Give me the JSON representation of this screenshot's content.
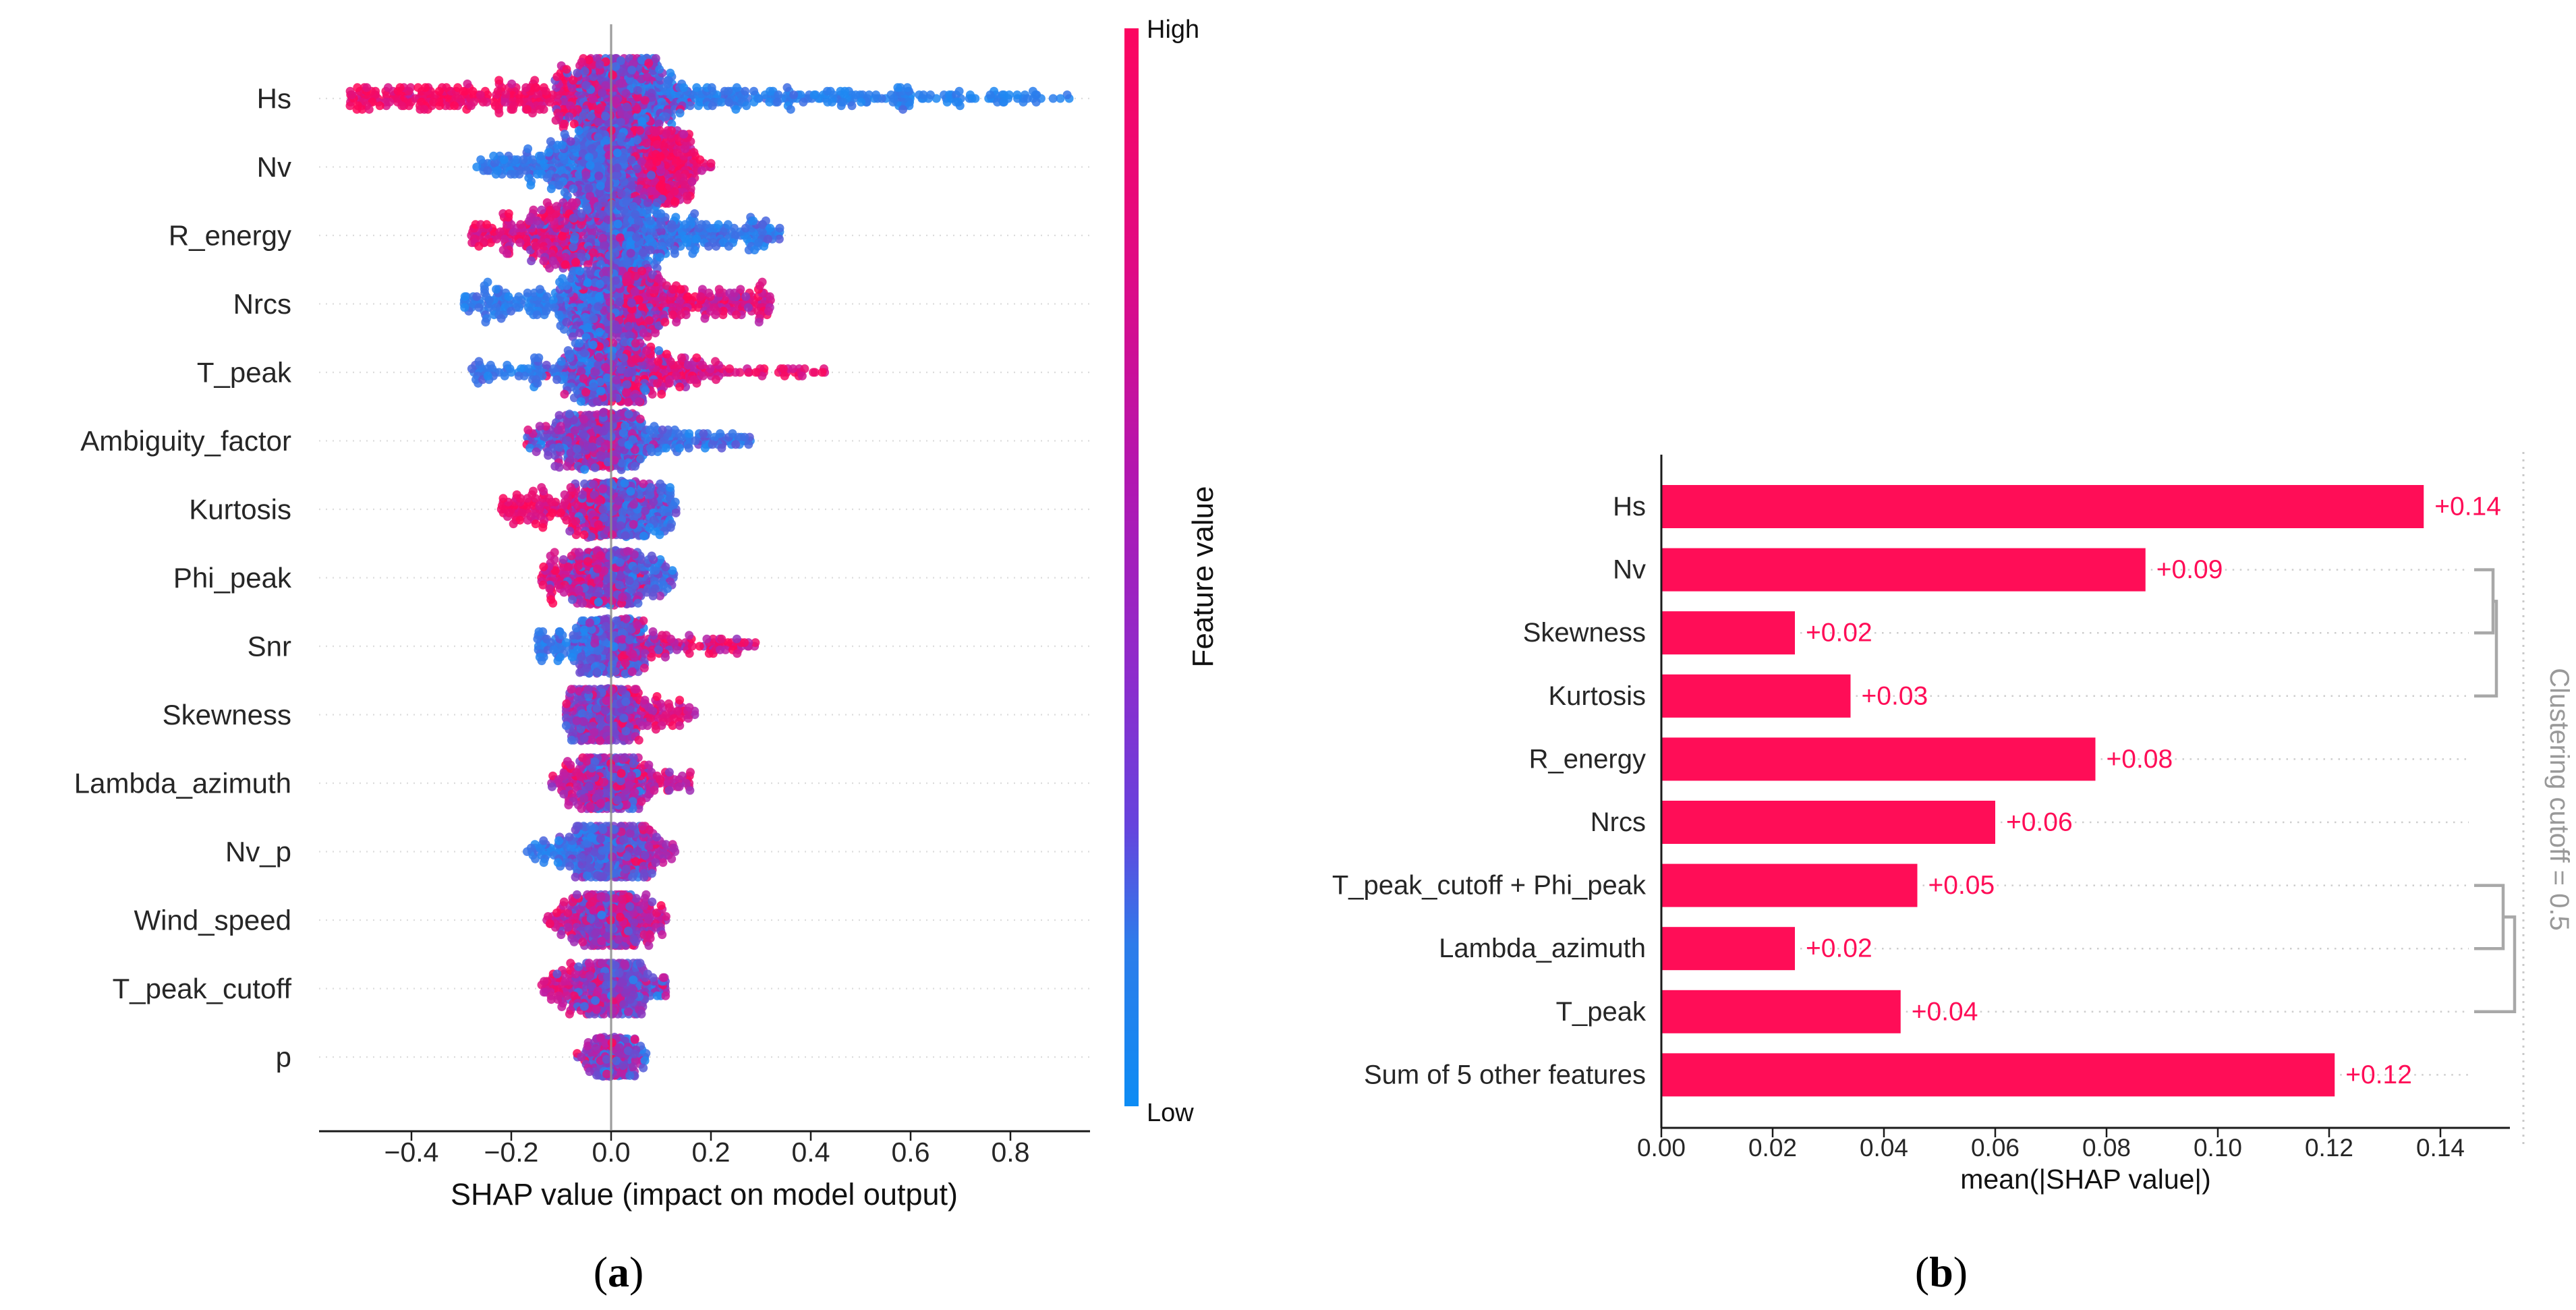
{
  "figure": {
    "background": "#ffffff",
    "caption_a": {
      "open": "(",
      "letter": "a",
      "close": ")"
    },
    "caption_b": {
      "open": "(",
      "letter": "b",
      "close": ")"
    }
  },
  "colors": {
    "accent_red": "#ff0d57",
    "accent_blue": "#1e88e5",
    "bar_fill": "#ff0d57",
    "value_label": "#ff0d57",
    "zero_line": "#8c8c8c",
    "row_dotted": "#dcdcdc",
    "leader_dotted": "#cdcdcd",
    "dendrogram": "#a8a8a8",
    "cutoff_line": "#c9c9c9",
    "axis": "#1a1a1a",
    "tick_text": "#262626",
    "label_text": "#262626",
    "muted_text": "#999999",
    "colormap": [
      {
        "t": 0.0,
        "c": "#1f88f2"
      },
      {
        "t": 0.5,
        "c": "#7d3cc6"
      },
      {
        "t": 0.75,
        "c": "#c41ba0"
      },
      {
        "t": 1.0,
        "c": "#ff0758"
      }
    ],
    "colorbar_gradient": [
      {
        "o": 0.0,
        "c": "#fc0560"
      },
      {
        "o": 0.22,
        "c": "#e00a84"
      },
      {
        "o": 0.42,
        "c": "#b117b1"
      },
      {
        "o": 0.6,
        "c": "#8d2ccc"
      },
      {
        "o": 0.74,
        "c": "#6643dd"
      },
      {
        "o": 0.85,
        "c": "#2e7cea"
      },
      {
        "o": 1.0,
        "c": "#0d8cf4"
      }
    ]
  },
  "chart_data": [
    {
      "id": "a",
      "type": "beeswarm",
      "xlabel": "SHAP value (impact on model output)",
      "xticks": [
        "−0.4",
        "−0.2",
        "0.0",
        "0.2",
        "0.4",
        "0.6",
        "0.8"
      ],
      "xtick_values": [
        -0.4,
        -0.2,
        0.0,
        0.2,
        0.4,
        0.6,
        0.8
      ],
      "xlim": [
        -0.585,
        0.96
      ],
      "grid": "dotted-rows",
      "colorbar": {
        "label": "Feature value",
        "high": "High",
        "low": "Low"
      },
      "features": [
        {
          "name": "Hs",
          "shap_range": [
            -0.53,
            0.92
          ],
          "trend": "high feature value -> negative SHAP",
          "n": 1100,
          "hw": 60,
          "comps": [
            {
              "f": 0.42,
              "k": "norm",
              "a": 0.015,
              "b": 0.055,
              "t": 0.5,
              "ts": 0.22
            },
            {
              "f": 0.3,
              "k": "tail",
              "a": -0.02,
              "b": -0.53,
              "e": 1.6,
              "t": 0.93,
              "ts": 0.07
            },
            {
              "f": 0.22,
              "k": "tail",
              "a": 0.06,
              "b": 0.6,
              "e": 1.7,
              "t": 0.07,
              "ts": 0.07
            },
            {
              "f": 0.06,
              "k": "tail",
              "a": 0.55,
              "b": 0.92,
              "e": 1.2,
              "t": 0.05,
              "ts": 0.05
            }
          ]
        },
        {
          "name": "Nv",
          "shap_range": [
            -0.27,
            0.2
          ],
          "trend": "high feature value -> positive SHAP",
          "n": 900,
          "hw": 54,
          "comps": [
            {
              "f": 0.38,
              "k": "norm",
              "a": -0.01,
              "b": 0.045,
              "t": 0.35,
              "ts": 0.2
            },
            {
              "f": 0.24,
              "k": "tail",
              "a": -0.02,
              "b": -0.27,
              "e": 1.6,
              "t": 0.1,
              "ts": 0.08
            },
            {
              "f": 0.33,
              "k": "norm",
              "a": 0.105,
              "b": 0.035,
              "t": 0.88,
              "ts": 0.1
            },
            {
              "f": 0.05,
              "k": "unif",
              "a": -0.04,
              "b": 0.06,
              "t": 0.5,
              "ts": 0.3
            }
          ]
        },
        {
          "name": "R_energy",
          "shap_range": [
            -0.28,
            0.34
          ],
          "trend": "high feature value -> negative SHAP",
          "n": 850,
          "hw": 52,
          "comps": [
            {
              "f": 0.33,
              "k": "norm",
              "a": 0.02,
              "b": 0.05,
              "t": 0.3,
              "ts": 0.18
            },
            {
              "f": 0.3,
              "k": "norm",
              "a": -0.11,
              "b": 0.055,
              "t": 0.8,
              "ts": 0.15
            },
            {
              "f": 0.32,
              "k": "tail",
              "a": 0.03,
              "b": 0.34,
              "e": 1.7,
              "t": 0.12,
              "ts": 0.1
            },
            {
              "f": 0.05,
              "k": "tail",
              "a": -0.2,
              "b": -0.28,
              "e": 1.2,
              "t": 0.9,
              "ts": 0.08
            }
          ]
        },
        {
          "name": "Nrcs",
          "shap_range": [
            -0.3,
            0.32
          ],
          "trend": "high feature value -> positive SHAP",
          "n": 800,
          "hw": 50,
          "comps": [
            {
              "f": 0.38,
              "k": "norm",
              "a": 0.0,
              "b": 0.05,
              "t": 0.45,
              "ts": 0.2
            },
            {
              "f": 0.27,
              "k": "tail",
              "a": -0.02,
              "b": -0.3,
              "e": 1.7,
              "t": 0.08,
              "ts": 0.07
            },
            {
              "f": 0.35,
              "k": "tail",
              "a": 0.03,
              "b": 0.32,
              "e": 1.8,
              "t": 0.85,
              "ts": 0.12
            }
          ]
        },
        {
          "name": "T_peak",
          "shap_range": [
            -0.28,
            0.43
          ],
          "trend": "high feature value -> positive SHAP, sparse high outliers right",
          "n": 650,
          "hw": 46,
          "comps": [
            {
              "f": 0.48,
              "k": "norm",
              "a": 0.0,
              "b": 0.045,
              "t": 0.5,
              "ts": 0.25
            },
            {
              "f": 0.24,
              "k": "tail",
              "a": -0.02,
              "b": -0.28,
              "e": 1.7,
              "t": 0.12,
              "ts": 0.1
            },
            {
              "f": 0.22,
              "k": "tail",
              "a": 0.03,
              "b": 0.22,
              "e": 1.5,
              "t": 0.85,
              "ts": 0.12
            },
            {
              "f": 0.06,
              "k": "unif",
              "a": 0.2,
              "b": 0.43,
              "t": 0.9,
              "ts": 0.08
            }
          ]
        },
        {
          "name": "Ambiguity_factor",
          "shap_range": [
            -0.17,
            0.28
          ],
          "trend": "low feature value -> positive tail",
          "n": 560,
          "hw": 43,
          "comps": [
            {
              "f": 0.62,
              "k": "norm",
              "a": -0.025,
              "b": 0.045,
              "t": 0.55,
              "ts": 0.25
            },
            {
              "f": 0.28,
              "k": "tail",
              "a": 0.02,
              "b": 0.28,
              "e": 1.7,
              "t": 0.15,
              "ts": 0.12
            },
            {
              "f": 0.1,
              "k": "tail",
              "a": -0.08,
              "b": -0.17,
              "e": 1.3,
              "t": 0.45,
              "ts": 0.25
            }
          ]
        },
        {
          "name": "Kurtosis",
          "shap_range": [
            -0.22,
            0.13
          ],
          "trend": "high feature value -> negative SHAP",
          "n": 560,
          "hw": 42,
          "comps": [
            {
              "f": 0.5,
              "k": "norm",
              "a": 0.01,
              "b": 0.04,
              "t": 0.45,
              "ts": 0.22
            },
            {
              "f": 0.3,
              "k": "tail",
              "a": -0.02,
              "b": -0.22,
              "e": 1.5,
              "t": 0.9,
              "ts": 0.08
            },
            {
              "f": 0.2,
              "k": "tail",
              "a": 0.02,
              "b": 0.13,
              "e": 1.4,
              "t": 0.15,
              "ts": 0.12
            }
          ]
        },
        {
          "name": "Phi_peak",
          "shap_range": [
            -0.14,
            0.13
          ],
          "trend": "high feature value -> negative SHAP",
          "n": 500,
          "hw": 41,
          "comps": [
            {
              "f": 0.6,
              "k": "norm",
              "a": 0.0,
              "b": 0.038,
              "t": 0.5,
              "ts": 0.25
            },
            {
              "f": 0.25,
              "k": "tail",
              "a": -0.02,
              "b": -0.14,
              "e": 1.4,
              "t": 0.85,
              "ts": 0.1
            },
            {
              "f": 0.15,
              "k": "tail",
              "a": 0.03,
              "b": 0.13,
              "e": 1.4,
              "t": 0.2,
              "ts": 0.15
            }
          ]
        },
        {
          "name": "Snr",
          "shap_range": [
            -0.15,
            0.29
          ],
          "trend": "high feature value -> positive SHAP",
          "n": 500,
          "hw": 41,
          "comps": [
            {
              "f": 0.55,
              "k": "norm",
              "a": 0.0,
              "b": 0.04,
              "t": 0.38,
              "ts": 0.2
            },
            {
              "f": 0.2,
              "k": "tail",
              "a": -0.02,
              "b": -0.15,
              "e": 1.4,
              "t": 0.1,
              "ts": 0.08
            },
            {
              "f": 0.25,
              "k": "tail",
              "a": 0.02,
              "b": 0.29,
              "e": 1.9,
              "t": 0.85,
              "ts": 0.12
            }
          ]
        },
        {
          "name": "Skewness",
          "shap_range": [
            -0.09,
            0.17
          ],
          "trend": "high feature value -> positive SHAP",
          "n": 470,
          "hw": 39,
          "comps": [
            {
              "f": 0.68,
              "k": "norm",
              "a": -0.008,
              "b": 0.032,
              "t": 0.52,
              "ts": 0.22
            },
            {
              "f": 0.22,
              "k": "tail",
              "a": 0.02,
              "b": 0.17,
              "e": 1.5,
              "t": 0.82,
              "ts": 0.12
            },
            {
              "f": 0.1,
              "k": "tail",
              "a": -0.05,
              "b": -0.09,
              "e": 1.2,
              "t": 0.6,
              "ts": 0.2
            }
          ]
        },
        {
          "name": "Lambda_azimuth",
          "shap_range": [
            -0.12,
            0.16
          ],
          "trend": "mixed, red at both extremes",
          "n": 450,
          "hw": 38,
          "comps": [
            {
              "f": 0.6,
              "k": "norm",
              "a": 0.0,
              "b": 0.034,
              "t": 0.5,
              "ts": 0.25
            },
            {
              "f": 0.2,
              "k": "tail",
              "a": -0.02,
              "b": -0.12,
              "e": 1.4,
              "t": 0.78,
              "ts": 0.12
            },
            {
              "f": 0.2,
              "k": "tail",
              "a": 0.02,
              "b": 0.16,
              "e": 1.5,
              "t": 0.78,
              "ts": 0.12
            }
          ]
        },
        {
          "name": "Nv_p",
          "shap_range": [
            -0.17,
            0.13
          ],
          "trend": "high feature value -> positive SHAP",
          "n": 450,
          "hw": 38,
          "comps": [
            {
              "f": 0.6,
              "k": "norm",
              "a": 0.0,
              "b": 0.038,
              "t": 0.35,
              "ts": 0.18
            },
            {
              "f": 0.22,
              "k": "tail",
              "a": -0.02,
              "b": -0.17,
              "e": 1.5,
              "t": 0.1,
              "ts": 0.08
            },
            {
              "f": 0.18,
              "k": "tail",
              "a": 0.02,
              "b": 0.13,
              "e": 1.4,
              "t": 0.75,
              "ts": 0.15
            }
          ]
        },
        {
          "name": "Wind_speed",
          "shap_range": [
            -0.13,
            0.11
          ],
          "trend": "mixed purple core, red tails",
          "n": 450,
          "hw": 38,
          "comps": [
            {
              "f": 0.66,
              "k": "norm",
              "a": 0.0,
              "b": 0.038,
              "t": 0.6,
              "ts": 0.22
            },
            {
              "f": 0.17,
              "k": "tail",
              "a": -0.02,
              "b": -0.13,
              "e": 1.4,
              "t": 0.8,
              "ts": 0.12
            },
            {
              "f": 0.17,
              "k": "tail",
              "a": 0.02,
              "b": 0.11,
              "e": 1.3,
              "t": 0.75,
              "ts": 0.15
            }
          ]
        },
        {
          "name": "T_peak_cutoff",
          "shap_range": [
            -0.14,
            0.11
          ],
          "trend": "high feature value -> negative SHAP",
          "n": 450,
          "hw": 38,
          "comps": [
            {
              "f": 0.64,
              "k": "norm",
              "a": 0.0,
              "b": 0.038,
              "t": 0.5,
              "ts": 0.22
            },
            {
              "f": 0.21,
              "k": "tail",
              "a": -0.02,
              "b": -0.14,
              "e": 1.4,
              "t": 0.85,
              "ts": 0.1
            },
            {
              "f": 0.15,
              "k": "tail",
              "a": 0.02,
              "b": 0.11,
              "e": 1.3,
              "t": 0.45,
              "ts": 0.25
            }
          ]
        },
        {
          "name": "p",
          "shap_range": [
            -0.08,
            0.07
          ],
          "trend": "small mixed cluster",
          "n": 260,
          "hw": 30,
          "comps": [
            {
              "f": 0.85,
              "k": "norm",
              "a": -0.004,
              "b": 0.024,
              "t": 0.55,
              "ts": 0.25
            },
            {
              "f": 0.15,
              "k": "tail",
              "a": 0.01,
              "b": 0.07,
              "e": 1.3,
              "t": 0.3,
              "ts": 0.25
            }
          ]
        }
      ]
    },
    {
      "id": "b",
      "type": "bar",
      "orientation": "horizontal",
      "xlabel": "mean(|SHAP value|)",
      "xticks": [
        "0.00",
        "0.02",
        "0.04",
        "0.06",
        "0.08",
        "0.10",
        "0.12",
        "0.14"
      ],
      "xtick_values": [
        0.0,
        0.02,
        0.04,
        0.06,
        0.08,
        0.1,
        0.12,
        0.14
      ],
      "xlim": [
        0,
        0.1525
      ],
      "categories": [
        "Hs",
        "Nv",
        "Skewness",
        "Kurtosis",
        "R_energy",
        "Nrcs",
        "T_peak_cutoff + Phi_peak",
        "Lambda_azimuth",
        "T_peak",
        "Sum of 5 other features"
      ],
      "values": [
        0.137,
        0.087,
        0.024,
        0.034,
        0.078,
        0.06,
        0.046,
        0.024,
        0.043,
        0.121
      ],
      "bar_labels": [
        "+0.14",
        "+0.09",
        "+0.02",
        "+0.03",
        "+0.08",
        "+0.06",
        "+0.05",
        "+0.02",
        "+0.04",
        "+0.12"
      ],
      "clustering": {
        "label": "Clustering cutoff = 0.5",
        "clusters": [
          {
            "members": [
              "Nv",
              "Skewness",
              "Kurtosis"
            ],
            "rows": [
              1,
              2,
              3
            ]
          },
          {
            "members": [
              "T_peak_cutoff + Phi_peak",
              "Lambda_azimuth",
              "T_peak"
            ],
            "rows": [
              6,
              7,
              8
            ]
          }
        ]
      }
    }
  ]
}
